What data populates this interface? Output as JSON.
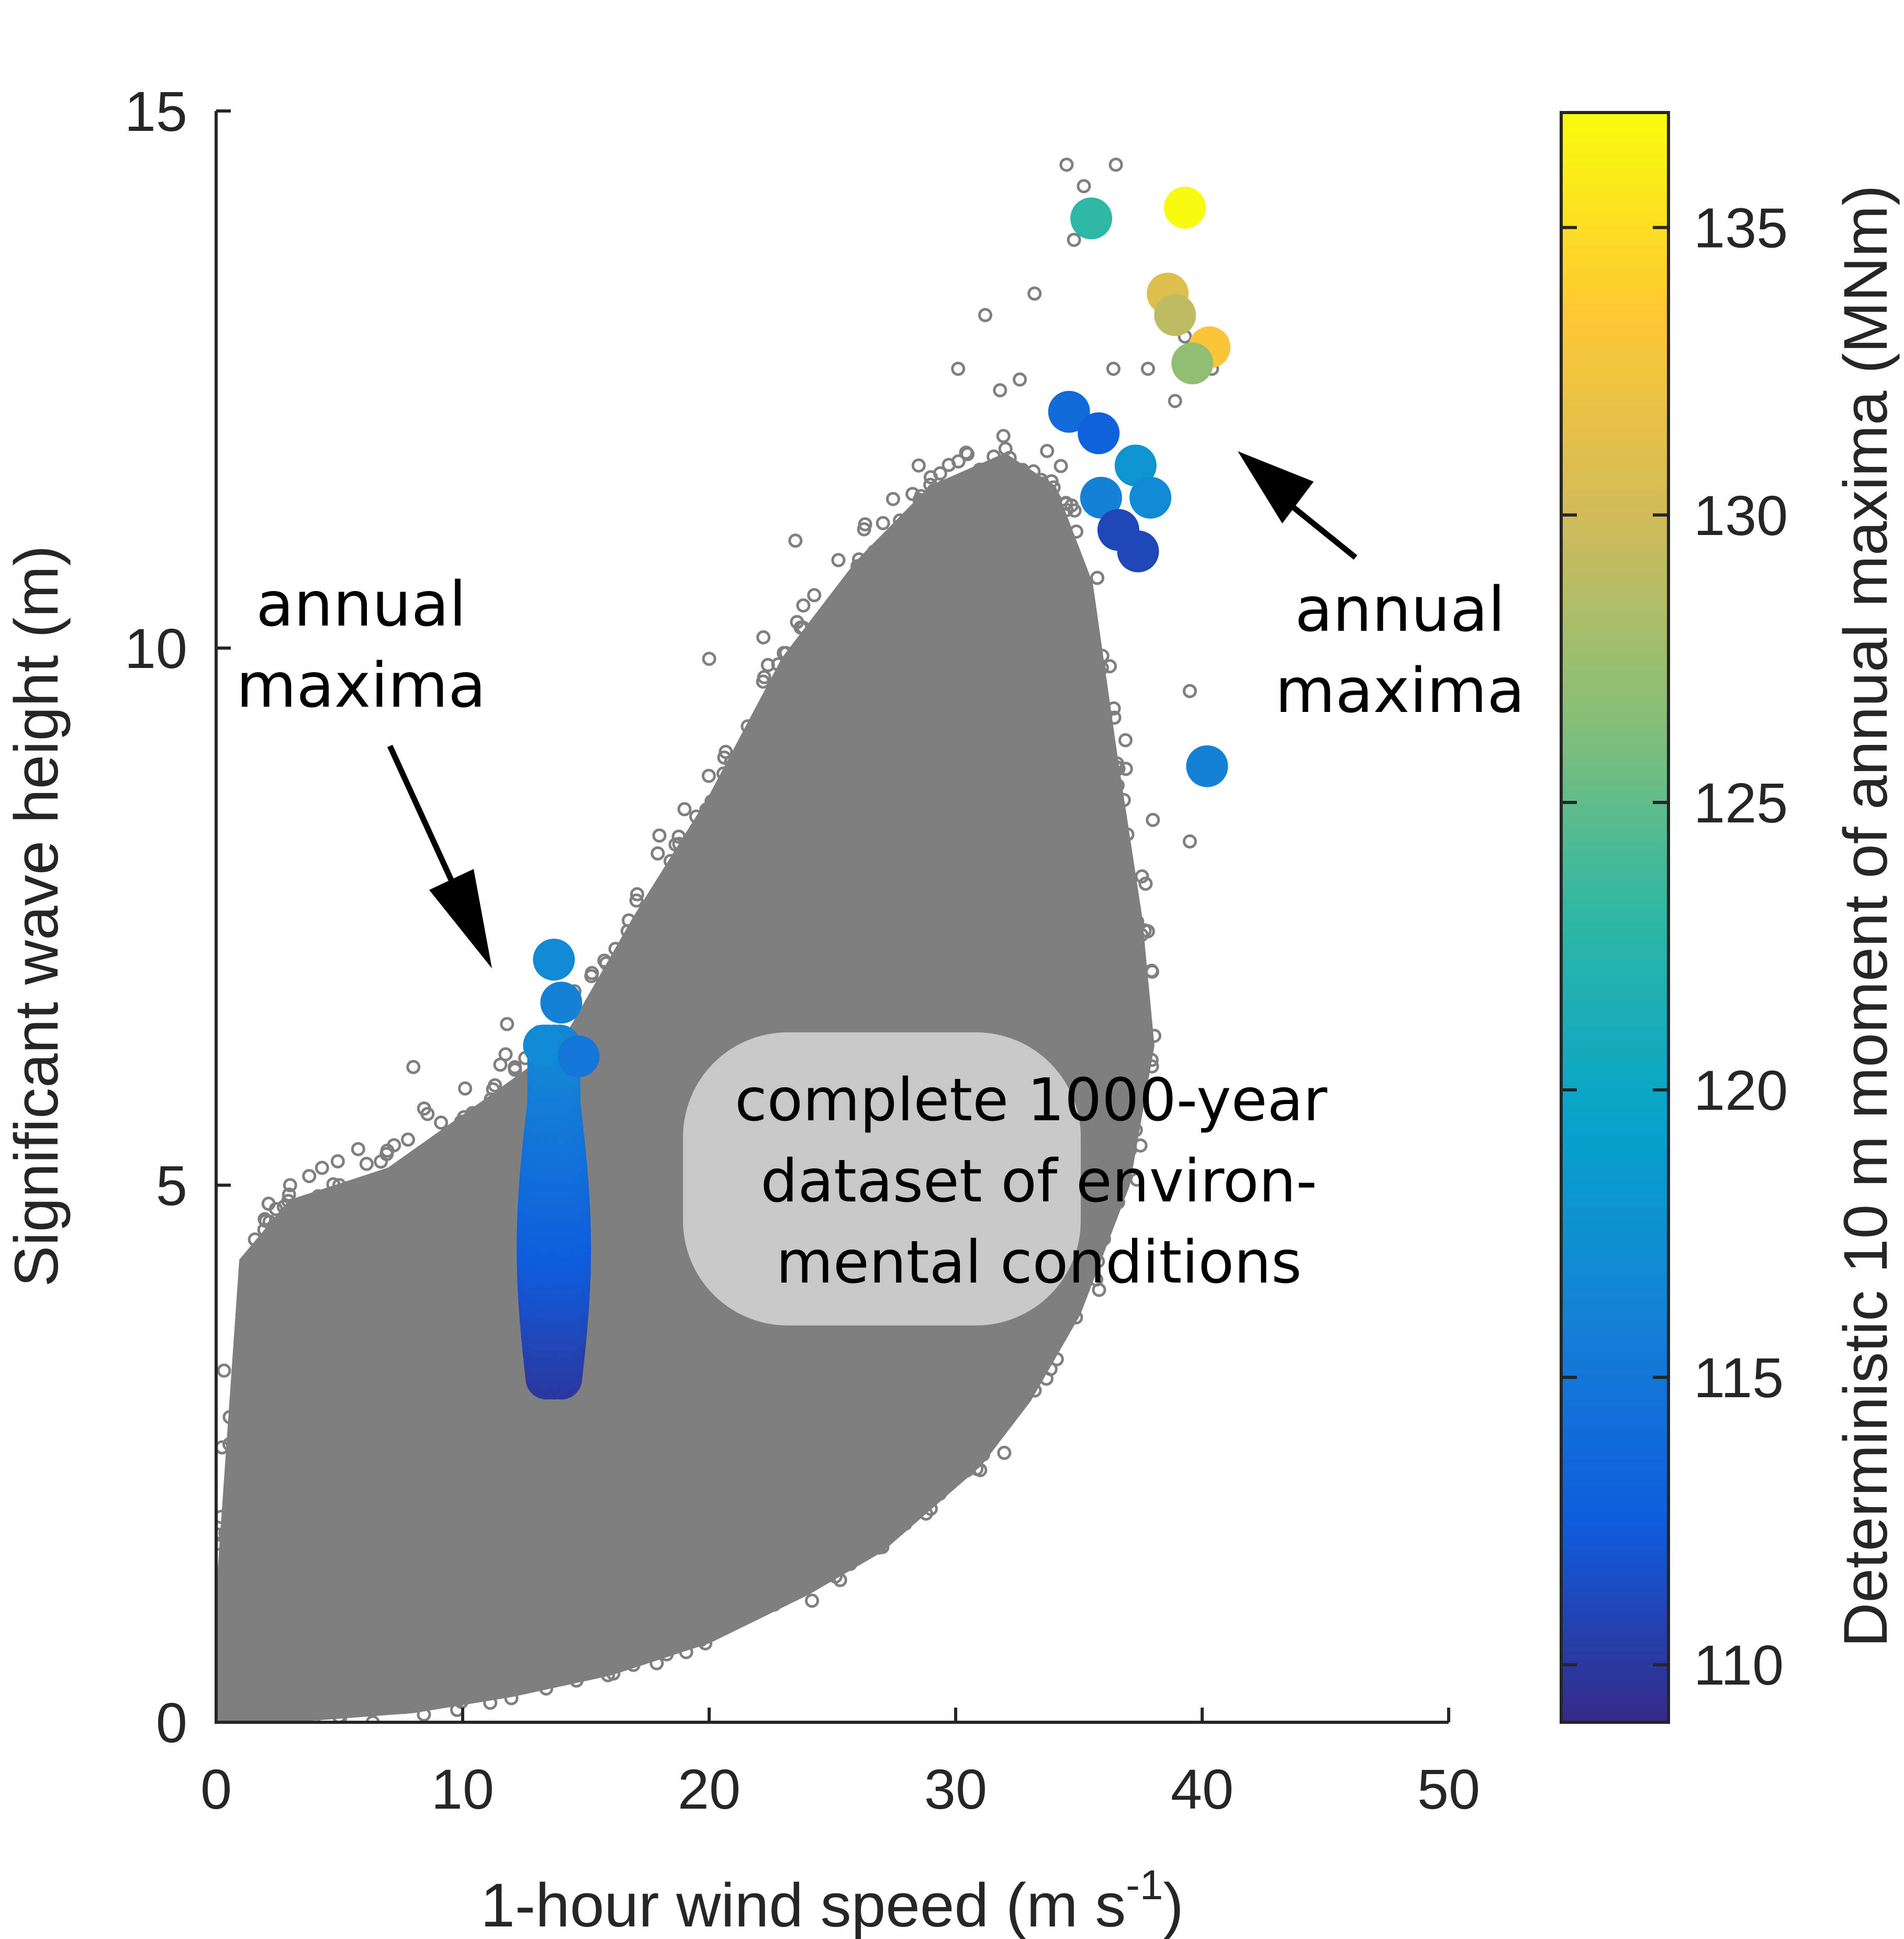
{
  "chart_data": {
    "type": "scatter",
    "xlabel_main": "1-hour wind speed (m s",
    "xlabel_sup": "-1",
    "xlabel_end": ")",
    "ylabel": "Significant wave height (m)",
    "xlim": [
      0,
      50
    ],
    "ylim": [
      0,
      15
    ],
    "x_ticks": [
      "0",
      "10",
      "20",
      "30",
      "40",
      "50"
    ],
    "y_ticks": [
      "0",
      "5",
      "10",
      "15"
    ],
    "grid": false,
    "colorbar": {
      "label": "Deterministic 10 m moment of annual maxima (MNm)",
      "range": [
        109,
        137
      ],
      "ticks": [
        "110",
        "115",
        "120",
        "125",
        "130",
        "135"
      ],
      "colormap": "parula",
      "colors": [
        "#352a87",
        "#0f5cdd",
        "#1481d6",
        "#06a4ca",
        "#2eb7a4",
        "#87bf77",
        "#d1bb59",
        "#fec832",
        "#f9fb0e"
      ]
    },
    "background_series": {
      "description_color": "#7f7f7f",
      "envelope_upper": [
        [
          0,
          1.0
        ],
        [
          1,
          4.3
        ],
        [
          3,
          4.85
        ],
        [
          7,
          5.15
        ],
        [
          11,
          5.8
        ],
        [
          14,
          6.3
        ],
        [
          17,
          7.5
        ],
        [
          20,
          8.6
        ],
        [
          23,
          9.9
        ],
        [
          26,
          10.8
        ],
        [
          29,
          11.5
        ],
        [
          32,
          11.8
        ],
        [
          34,
          11.5
        ],
        [
          35.5,
          10.6
        ],
        [
          36.5,
          9.0
        ],
        [
          37.5,
          7.5
        ],
        [
          38,
          6.3
        ],
        [
          37,
          5.0
        ],
        [
          35,
          3.8
        ],
        [
          33,
          3.0
        ],
        [
          31,
          2.4
        ],
        [
          29,
          2.0
        ],
        [
          27,
          1.6
        ],
        [
          24,
          1.2
        ],
        [
          20,
          0.75
        ],
        [
          16,
          0.45
        ],
        [
          12,
          0.25
        ],
        [
          8,
          0.1
        ],
        [
          4,
          0.03
        ],
        [
          0,
          0.0
        ]
      ],
      "outliers": [
        [
          34.5,
          14.5
        ],
        [
          36.5,
          14.5
        ],
        [
          35.2,
          14.3
        ],
        [
          34.8,
          13.8
        ],
        [
          33.2,
          13.3
        ],
        [
          31.2,
          13.1
        ],
        [
          30.1,
          12.6
        ],
        [
          31.8,
          12.4
        ],
        [
          32.6,
          12.5
        ],
        [
          34.3,
          12.1
        ],
        [
          36.4,
          12.6
        ],
        [
          37.8,
          12.6
        ],
        [
          38.9,
          12.3
        ],
        [
          28.5,
          11.7
        ],
        [
          29.5,
          11.5
        ],
        [
          27.3,
          10.6
        ],
        [
          26.7,
          10.9
        ],
        [
          23.5,
          11.0
        ],
        [
          24.8,
          9.5
        ],
        [
          22.2,
          10.1
        ],
        [
          20,
          9.9
        ],
        [
          39.5,
          9.6
        ],
        [
          39.5,
          8.2
        ],
        [
          38.0,
          8.4
        ],
        [
          37.3,
          6.6
        ],
        [
          36.0,
          6.2
        ],
        [
          19.0,
          8.5
        ],
        [
          16.2,
          7.2
        ],
        [
          11.8,
          6.5
        ],
        [
          8.0,
          6.1
        ],
        [
          10.1,
          5.9
        ],
        [
          5.0,
          5.0
        ],
        [
          3.0,
          5.0
        ],
        [
          39.3,
          12.9
        ],
        [
          40.4,
          12.6
        ]
      ]
    },
    "annual_maxima_clusters": [
      {
        "x_min": 12.6,
        "x_max": 14.8,
        "y_min": 3.2,
        "y_max": 6.3,
        "moment_low": 110,
        "moment_high": 116.5
      }
    ],
    "annual_maxima_points": [
      {
        "x": 13.7,
        "y": 7.1,
        "moment": 117
      },
      {
        "x": 14.0,
        "y": 6.7,
        "moment": 116
      },
      {
        "x": 13.3,
        "y": 6.3,
        "moment": 117
      },
      {
        "x": 14.7,
        "y": 6.2,
        "moment": 115
      },
      {
        "x": 35.5,
        "y": 14.0,
        "moment": 123
      },
      {
        "x": 39.3,
        "y": 14.1,
        "moment": 137
      },
      {
        "x": 38.6,
        "y": 13.3,
        "moment": 131
      },
      {
        "x": 38.9,
        "y": 13.1,
        "moment": 129
      },
      {
        "x": 40.3,
        "y": 12.8,
        "moment": 133
      },
      {
        "x": 39.6,
        "y": 12.65,
        "moment": 127
      },
      {
        "x": 34.6,
        "y": 12.2,
        "moment": 114
      },
      {
        "x": 35.8,
        "y": 12.0,
        "moment": 113
      },
      {
        "x": 37.3,
        "y": 11.7,
        "moment": 118
      },
      {
        "x": 35.9,
        "y": 11.4,
        "moment": 116
      },
      {
        "x": 37.9,
        "y": 11.4,
        "moment": 117
      },
      {
        "x": 36.6,
        "y": 11.1,
        "moment": 111
      },
      {
        "x": 37.4,
        "y": 10.9,
        "moment": 111
      },
      {
        "x": 40.2,
        "y": 8.9,
        "moment": 116
      }
    ],
    "annotations": {
      "left_line1": "annual",
      "left_line2": "maxima",
      "right_line1": "annual",
      "right_line2": "maxima",
      "box_line1": "complete 1000-year",
      "box_line2": "dataset of environ-",
      "box_line3": "mental conditions"
    }
  }
}
